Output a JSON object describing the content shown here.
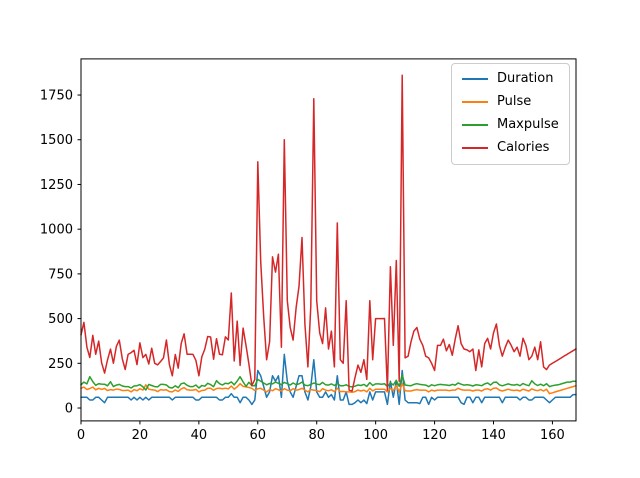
{
  "figure": {
    "background": "#ffffff"
  },
  "chart_data": {
    "type": "line",
    "title": "",
    "xlabel": "",
    "ylabel": "",
    "grid": false,
    "x_axis": {
      "ticks": [
        0,
        20,
        40,
        60,
        80,
        100,
        120,
        140,
        160
      ],
      "lim": [
        0,
        168
      ]
    },
    "y_axis": {
      "ticks": [
        0,
        250,
        500,
        750,
        1000,
        1250,
        1500,
        1750
      ],
      "lim": [
        -72,
        1952
      ]
    },
    "legend": {
      "position": "upper right",
      "entries": [
        "Duration",
        "Pulse",
        "Maxpulse",
        "Calories"
      ]
    },
    "series": [
      {
        "name": "Duration",
        "color": "#1f77b4",
        "values": [
          60,
          60,
          60,
          45,
          45,
          60,
          60,
          45,
          30,
          60,
          60,
          60,
          60,
          60,
          60,
          60,
          60,
          45,
          60,
          45,
          60,
          45,
          60,
          45,
          60,
          60,
          60,
          60,
          60,
          60,
          60,
          45,
          60,
          60,
          60,
          60,
          60,
          60,
          60,
          45,
          45,
          60,
          60,
          60,
          60,
          60,
          60,
          45,
          45,
          60,
          60,
          80,
          60,
          60,
          30,
          60,
          60,
          45,
          20,
          45,
          210,
          180,
          120,
          60,
          90,
          180,
          150,
          180,
          60,
          300,
          150,
          90,
          60,
          120,
          180,
          180,
          90,
          45,
          120,
          270,
          90,
          60,
          60,
          90,
          60,
          75,
          45,
          180,
          45,
          45,
          90,
          20,
          20,
          30,
          45,
          30,
          45,
          25,
          90,
          45,
          90,
          90,
          90,
          90,
          20,
          150,
          60,
          150,
          20,
          210,
          45,
          30,
          30,
          30,
          30,
          25,
          60,
          60,
          20,
          60,
          45,
          60,
          60,
          60,
          60,
          60,
          60,
          60,
          60,
          30,
          20,
          60,
          60,
          30,
          60,
          60,
          30,
          60,
          60,
          60,
          60,
          60,
          60,
          30,
          60,
          60,
          60,
          60,
          60,
          45,
          60,
          60,
          45,
          45,
          60,
          60,
          60,
          60,
          45,
          30,
          45,
          60,
          60,
          60,
          60,
          60,
          60,
          75,
          75
        ]
      },
      {
        "name": "Pulse",
        "color": "#ff7f0e",
        "values": [
          110,
          117,
          103,
          109,
          117,
          102,
          110,
          104,
          109,
          98,
          103,
          100,
          106,
          104,
          98,
          98,
          100,
          90,
          103,
          97,
          108,
          100,
          130,
          105,
          102,
          100,
          92,
          103,
          100,
          102,
          92,
          90,
          101,
          93,
          107,
          114,
          102,
          100,
          100,
          104,
          90,
          98,
          100,
          111,
          111,
          99,
          109,
          111,
          108,
          111,
          107,
          123,
          106,
          118,
          136,
          121,
          118,
          115,
          110,
          98,
          108,
          110,
          100,
          90,
          103,
          97,
          108,
          102,
          95,
          108,
          100,
          97,
          108,
          100,
          103,
          110,
          100,
          90,
          103,
          100,
          97,
          92,
          108,
          100,
          97,
          102,
          92,
          110,
          92,
          93,
          90,
          90,
          88,
          92,
          100,
          95,
          100,
          90,
          110,
          95,
          105,
          105,
          105,
          105,
          90,
          110,
          97,
          127,
          90,
          137,
          97,
          95,
          95,
          100,
          103,
          100,
          100,
          100,
          90,
          100,
          95,
          100,
          100,
          100,
          100,
          97,
          100,
          100,
          110,
          103,
          100,
          100,
          100,
          95,
          100,
          100,
          95,
          105,
          108,
          100,
          110,
          112,
          100,
          95,
          100,
          105,
          100,
          98,
          100,
          95,
          105,
          100,
          95,
          107,
          100,
          97,
          103,
          95,
          105,
          80,
          85,
          90,
          95,
          100,
          105,
          110,
          115,
          120,
          125
        ]
      },
      {
        "name": "Maxpulse",
        "color": "#2ca02c",
        "values": [
          130,
          145,
          135,
          175,
          148,
          127,
          136,
          134,
          133,
          124,
          147,
          120,
          128,
          132,
          123,
          120,
          120,
          112,
          123,
          125,
          131,
          119,
          101,
          132,
          126,
          120,
          118,
          132,
          132,
          129,
          115,
          112,
          124,
          113,
          136,
          140,
          127,
          120,
          120,
          129,
          112,
          126,
          122,
          138,
          131,
          119,
          153,
          136,
          129,
          139,
          136,
          146,
          130,
          151,
          175,
          146,
          121,
          144,
          125,
          124,
          160,
          150,
          140,
          130,
          137,
          135,
          145,
          138,
          131,
          143,
          136,
          129,
          140,
          131,
          135,
          145,
          128,
          125,
          132,
          140,
          134,
          131,
          143,
          130,
          128,
          135,
          126,
          137,
          125,
          124,
          130,
          121,
          118,
          122,
          129,
          126,
          132,
          121,
          142,
          126,
          135,
          135,
          133,
          136,
          120,
          141,
          129,
          155,
          121,
          184,
          129,
          126,
          125,
          132,
          136,
          132,
          130,
          128,
          120,
          130,
          125,
          130,
          132,
          130,
          129,
          126,
          132,
          128,
          140,
          133,
          128,
          130,
          128,
          123,
          130,
          128,
          125,
          135,
          140,
          129,
          143,
          145,
          130,
          124,
          130,
          135,
          130,
          128,
          132,
          125,
          137,
          130,
          125,
          152,
          135,
          126,
          133,
          125,
          136,
          120,
          125,
          128,
          130,
          135,
          140,
          145,
          145,
          150,
          150
        ]
      },
      {
        "name": "Calories",
        "color": "#d62728",
        "values": [
          409.1,
          479.0,
          340.0,
          282.4,
          406.0,
          300.5,
          374.0,
          253.3,
          195.1,
          269.0,
          329.3,
          250.7,
          345.3,
          379.3,
          275.0,
          215.2,
          300.0,
          310.0,
          323.0,
          243.0,
          364.2,
          282.0,
          300.0,
          246.0,
          334.5,
          250.0,
          241.0,
          260.0,
          280.0,
          380.3,
          243.0,
          180.1,
          299.0,
          223.0,
          361.0,
          415.1,
          300.5,
          300.1,
          300.0,
          266.0,
          180.1,
          286.0,
          329.4,
          400.0,
          397.0,
          273.0,
          387.6,
          300.5,
          298.0,
          397.6,
          380.2,
          643.1,
          263.0,
          486.0,
          238.0,
          447.1,
          350.0,
          246.0,
          125.4,
          160.0,
          1376.0,
          820.0,
          510.0,
          270.0,
          370.0,
          845.0,
          760.0,
          860.0,
          340.0,
          1500.2,
          600.0,
          450.0,
          380.0,
          560.0,
          680.0,
          953.2,
          470.0,
          230.0,
          570.0,
          1729.0,
          600.0,
          420.0,
          360.0,
          560.0,
          330.0,
          430.0,
          230.0,
          1034.4,
          270.0,
          250.0,
          600.1,
          100.0,
          95.0,
          170.0,
          240.0,
          200.0,
          270.0,
          160.0,
          600.0,
          270.0,
          500.0,
          500.0,
          500.0,
          500.4,
          100.0,
          790.0,
          350.0,
          825.0,
          150.0,
          1860.4,
          280.0,
          290.0,
          370.0,
          430.0,
          450.0,
          385.0,
          350.0,
          290.0,
          280.0,
          250.0,
          210.0,
          350.0,
          350.0,
          385.0,
          320.0,
          355.0,
          295.0,
          385.0,
          460.0,
          360.0,
          330.0,
          325.0,
          315.0,
          330.0,
          210.0,
          325.0,
          230.0,
          360.0,
          390.0,
          330.0,
          420.0,
          470.0,
          350.0,
          290.0,
          340.0,
          380.0,
          350.0,
          315.0,
          340.0,
          290.0,
          390.0,
          350.0,
          270.0,
          290.0,
          340.0,
          270.0,
          370.0,
          230.0,
          215.0,
          240.0,
          250.0,
          260.0,
          270.0,
          280.0,
          290.8,
          300.4,
          310.2,
          320.4,
          330.4
        ]
      }
    ]
  }
}
